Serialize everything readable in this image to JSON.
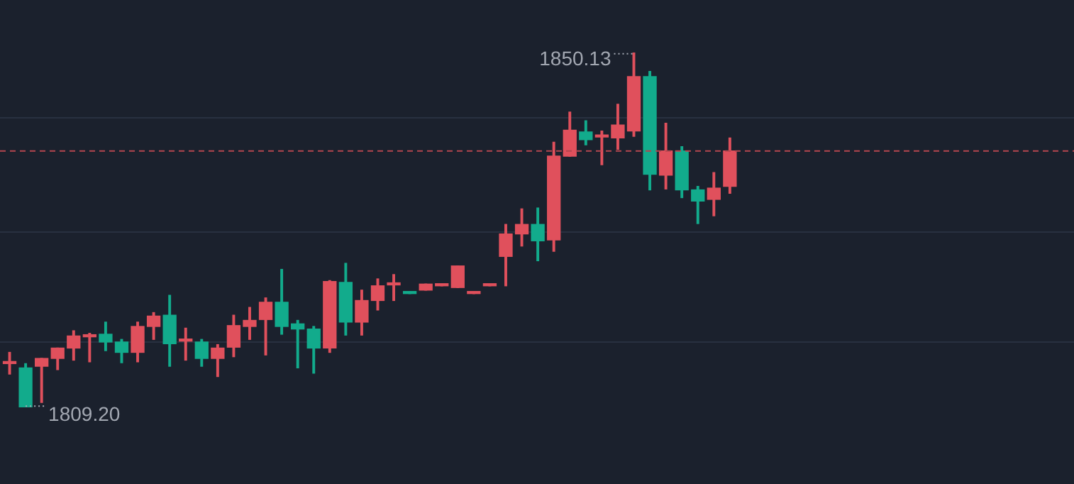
{
  "chart_data": {
    "type": "candlestick",
    "categories": [
      null,
      null,
      null,
      null,
      null,
      null,
      null,
      null,
      null,
      null,
      null,
      null,
      null,
      null,
      null,
      null,
      null,
      null,
      null,
      null,
      null,
      null,
      null,
      null,
      null,
      null,
      null,
      null,
      null,
      null,
      null,
      null,
      null,
      null,
      null,
      null,
      null,
      null,
      null,
      null,
      null,
      null,
      null,
      null,
      null,
      null
    ],
    "ohlc": [
      [
        1814.2,
        1815.5,
        1813.0,
        1814.3
      ],
      [
        1813.7,
        1814.2,
        1809.2,
        1809.2
      ],
      [
        1813.9,
        1814.8,
        1809.7,
        1814.8
      ],
      [
        1814.8,
        1816.0,
        1813.5,
        1816.0
      ],
      [
        1816.0,
        1818.0,
        1814.6,
        1817.4
      ],
      [
        1817.3,
        1817.7,
        1814.4,
        1817.4
      ],
      [
        1817.6,
        1819.0,
        1815.7,
        1816.7
      ],
      [
        1816.7,
        1817.0,
        1814.3,
        1815.5
      ],
      [
        1815.5,
        1819.0,
        1814.4,
        1818.5
      ],
      [
        1818.5,
        1820.1,
        1817.0,
        1819.7
      ],
      [
        1819.8,
        1822.1,
        1813.9,
        1816.5
      ],
      [
        1816.8,
        1818.3,
        1814.6,
        1816.9
      ],
      [
        1816.7,
        1817.0,
        1813.9,
        1814.8
      ],
      [
        1814.8,
        1816.4,
        1812.7,
        1816.0
      ],
      [
        1816.1,
        1819.8,
        1815.0,
        1818.6
      ],
      [
        1818.5,
        1820.7,
        1817.0,
        1819.2
      ],
      [
        1819.3,
        1821.8,
        1815.2,
        1821.3
      ],
      [
        1821.3,
        1825.1,
        1817.6,
        1818.5
      ],
      [
        1818.8,
        1819.2,
        1813.7,
        1818.2
      ],
      [
        1818.2,
        1818.5,
        1813.1,
        1816.0
      ],
      [
        1816.0,
        1823.8,
        1815.5,
        1823.7
      ],
      [
        1823.6,
        1825.8,
        1817.5,
        1819.0
      ],
      [
        1819.0,
        1822.7,
        1817.5,
        1821.5
      ],
      [
        1821.5,
        1824.0,
        1820.4,
        1823.2
      ],
      [
        1823.3,
        1824.5,
        1821.5,
        1823.4
      ],
      [
        1822.5,
        1822.5,
        1822.3,
        1822.3
      ],
      [
        1822.7,
        1823.4,
        1822.7,
        1823.4
      ],
      [
        1823.2,
        1823.3,
        1823.2,
        1823.3
      ],
      [
        1823.0,
        1825.5,
        1823.0,
        1825.5
      ],
      [
        1822.3,
        1822.4,
        1822.3,
        1822.4
      ],
      [
        1823.2,
        1823.3,
        1823.2,
        1823.3
      ],
      [
        1826.6,
        1830.3,
        1823.2,
        1829.2
      ],
      [
        1829.2,
        1832.1,
        1827.8,
        1830.3
      ],
      [
        1830.3,
        1832.2,
        1826.1,
        1828.4
      ],
      [
        1828.5,
        1839.8,
        1827.2,
        1838.2
      ],
      [
        1838.2,
        1843.3,
        1838.2,
        1841.2
      ],
      [
        1841.0,
        1842.3,
        1839.5,
        1840.1
      ],
      [
        1840.4,
        1841.1,
        1837.2,
        1840.5
      ],
      [
        1840.3,
        1844.2,
        1839.0,
        1841.8
      ],
      [
        1841.1,
        1850.13,
        1840.5,
        1847.4
      ],
      [
        1847.4,
        1848.0,
        1834.3,
        1836.1
      ],
      [
        1836.0,
        1842.0,
        1834.4,
        1838.8
      ],
      [
        1838.8,
        1839.3,
        1833.4,
        1834.3
      ],
      [
        1834.3,
        1834.7,
        1830.4,
        1833.0
      ],
      [
        1833.2,
        1836.3,
        1831.3,
        1834.5
      ],
      [
        1834.7,
        1840.3,
        1833.9,
        1838.8
      ]
    ],
    "colors": [
      "#e0505c",
      "#12ab8c",
      "#e0505c",
      "#e0505c",
      "#e0505c",
      "#e0505c",
      "#12ab8c",
      "#12ab8c",
      "#e0505c",
      "#e0505c",
      "#12ab8c",
      "#e0505c",
      "#12ab8c",
      "#e0505c",
      "#e0505c",
      "#e0505c",
      "#e0505c",
      "#12ab8c",
      "#12ab8c",
      "#12ab8c",
      "#e0505c",
      "#12ab8c",
      "#e0505c",
      "#e0505c",
      "#e0505c",
      "#12ab8c",
      "#e0505c",
      "#e0505c",
      "#e0505c",
      "#e0505c",
      "#e0505c",
      "#e0505c",
      "#e0505c",
      "#12ab8c",
      "#e0505c",
      "#e0505c",
      "#12ab8c",
      "#e0505c",
      "#e0505c",
      "#e0505c",
      "#12ab8c",
      "#e0505c",
      "#12ab8c",
      "#12ab8c",
      "#e0505c",
      "#e0505c"
    ],
    "annotations": [
      "1850.13",
      "1809.20"
    ],
    "yticks": [
      {
        "value": 1816.7,
        "label": null
      },
      {
        "value": 1829.4,
        "label": null
      },
      {
        "value": 1842.6,
        "label": null
      }
    ],
    "ref_lines": [
      {
        "axis": "y",
        "value": 1838.8,
        "color": "#b5464f",
        "line_style": "dashed"
      }
    ],
    "grid": "y",
    "legend": false
  }
}
